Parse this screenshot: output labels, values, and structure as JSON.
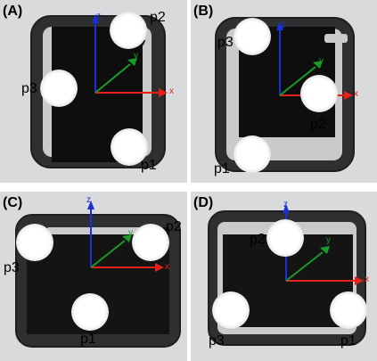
{
  "panels": [
    {
      "label": "(A)",
      "markers": [
        "p2",
        "p3",
        "p1"
      ]
    },
    {
      "label": "(B)",
      "markers": [
        "p3",
        "p2",
        "p1"
      ]
    },
    {
      "label": "(C)",
      "markers": [
        "p2",
        "p3",
        "p1"
      ]
    },
    {
      "label": "(D)",
      "markers": [
        "p2",
        "p3",
        "p1"
      ]
    }
  ],
  "axes": {
    "x": "x",
    "y": "y",
    "z": "z"
  },
  "colors": {
    "x_axis": "#e8201a",
    "y_axis": "#1a9b2a",
    "z_axis": "#1a2fd8",
    "frame": "#2b2b2b",
    "pad": "#0c0c0c"
  }
}
